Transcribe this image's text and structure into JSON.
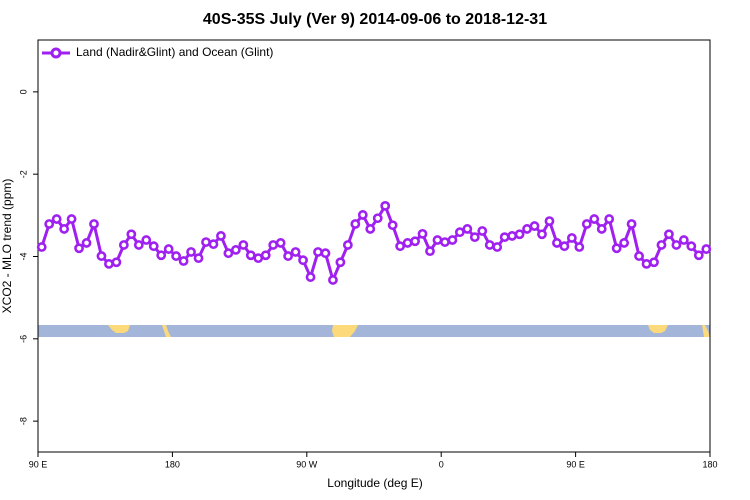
{
  "chart_data": {
    "type": "line",
    "title": "40S-35S July (Ver 9)   2014-09-06 to 2018-12-31",
    "x_label": "Longitude (deg E)",
    "y_label": "XCO2 - MLO trend (ppm)",
    "xlim": [
      90,
      540
    ],
    "ylim": [
      -8.75,
      1.26
    ],
    "xticks": [
      {
        "value": 90,
        "label": "90 E"
      },
      {
        "value": 180,
        "label": "180"
      },
      {
        "value": 270,
        "label": "90 W"
      },
      {
        "value": 360,
        "label": "0"
      },
      {
        "value": 450,
        "label": "90 E"
      },
      {
        "value": 540,
        "label": "180"
      }
    ],
    "yticks": [
      0,
      -2,
      -4,
      -6,
      -8
    ],
    "legend": "top-left",
    "x": [
      92.5,
      97.5,
      102.5,
      107.5,
      112.5,
      117.5,
      122.5,
      127.5,
      132.5,
      137.5,
      142.5,
      147.5,
      152.5,
      157.5,
      162.5,
      167.5,
      172.5,
      177.5,
      182.5,
      187.5,
      192.5,
      197.5,
      202.5,
      207.5,
      212.5,
      217.5,
      222.5,
      227.5,
      232.5,
      237.5,
      242.5,
      247.5,
      252.5,
      257.5,
      262.5,
      267.5,
      272.5,
      277.5,
      282.5,
      287.5,
      292.5,
      297.5,
      302.5,
      307.5,
      312.5,
      317.5,
      322.5,
      327.5,
      332.5,
      337.5,
      342.5,
      347.5,
      352.5,
      357.5,
      362.5,
      367.5,
      372.5,
      377.5,
      382.5,
      387.5,
      392.5,
      397.5,
      402.5,
      407.5,
      412.5,
      417.5,
      422.5,
      427.5,
      432.5,
      437.5,
      442.5,
      447.5,
      452.5,
      457.5,
      462.5,
      467.5,
      472.5,
      477.5,
      482.5,
      487.5,
      492.5,
      497.5,
      502.5,
      507.5,
      512.5,
      517.5,
      522.5,
      527.5,
      532.5,
      537.5
    ],
    "series": [
      {
        "name": "Land (Nadir&Glint) and Ocean (Glint)",
        "color": "#a020f0",
        "values": [
          -3.77,
          -3.21,
          -3.09,
          -3.33,
          -3.09,
          -3.8,
          -3.67,
          -3.21,
          -3.99,
          -4.18,
          -4.14,
          -3.72,
          -3.46,
          -3.72,
          -3.6,
          -3.75,
          -3.97,
          -3.82,
          -3.99,
          -4.11,
          -3.89,
          -4.04,
          -3.65,
          -3.7,
          -3.5,
          -3.92,
          -3.84,
          -3.72,
          -3.97,
          -4.04,
          -3.97,
          -3.72,
          -3.67,
          -3.99,
          -3.89,
          -4.09,
          -4.5,
          -3.89,
          -3.92,
          -4.57,
          -4.14,
          -3.72,
          -3.21,
          -2.99,
          -3.33,
          -3.07,
          -2.77,
          -3.24,
          -3.75,
          -3.67,
          -3.63,
          -3.45,
          -3.87,
          -3.6,
          -3.65,
          -3.6,
          -3.41,
          -3.33,
          -3.53,
          -3.38,
          -3.72,
          -3.77,
          -3.53,
          -3.5,
          -3.46,
          -3.33,
          -3.26,
          -3.46,
          -3.14,
          -3.67,
          -3.75,
          -3.55,
          -3.77,
          -3.21,
          -3.09,
          -3.33,
          -3.09,
          -3.8,
          -3.67,
          -3.21,
          -3.99,
          -4.18,
          -4.14,
          -3.72,
          -3.46,
          -3.72,
          -3.6,
          -3.75,
          -3.97,
          -3.82
        ]
      }
    ]
  }
}
